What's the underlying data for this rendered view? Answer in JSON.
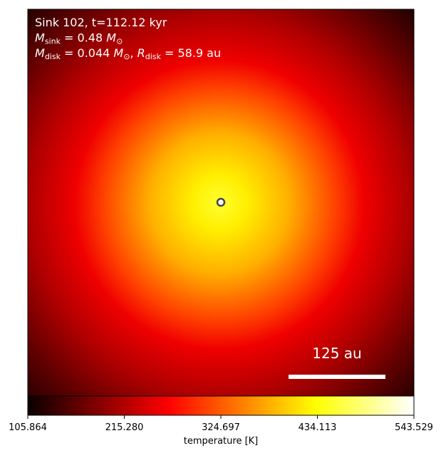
{
  "chart_data": {
    "type": "image",
    "annotation_lines": [
      [
        {
          "text": "Sink 102, t=112.12 kyr"
        }
      ],
      [
        {
          "text": "M",
          "italic": true
        },
        {
          "text": "sink",
          "sub": true
        },
        {
          "text": " = 0.48 "
        },
        {
          "text": "M",
          "italic": true
        },
        {
          "text": "⊙",
          "sub": true
        }
      ],
      [
        {
          "text": "M",
          "italic": true
        },
        {
          "text": "disk",
          "sub": true
        },
        {
          "text": " = 0.044 "
        },
        {
          "text": "M",
          "italic": true
        },
        {
          "text": "⊙",
          "sub": true
        },
        {
          "text": ", "
        },
        {
          "text": "R",
          "italic": true
        },
        {
          "text": "disk",
          "sub": true
        },
        {
          "text": " = 58.9 au"
        }
      ]
    ],
    "scale_bar_label": "125 au",
    "colorbar": {
      "label": "temperature [K]",
      "colormap": "hot",
      "clim": [
        105.864,
        543.529
      ],
      "ticks": [
        105.864,
        215.28,
        324.697,
        434.113,
        543.529
      ]
    }
  }
}
